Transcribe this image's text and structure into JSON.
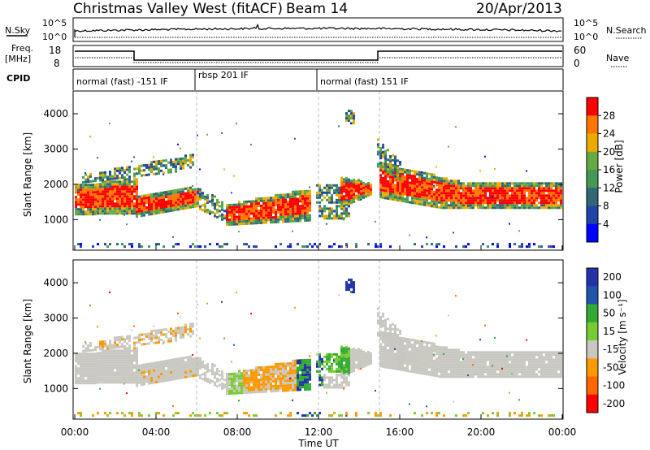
{
  "header": {
    "title": "Christmas Valley West (fitACF)",
    "beam": "Beam 14",
    "date": "20/Apr/2013"
  },
  "panels": {
    "nsky_label": "N.Sky",
    "nsky_ticks": [
      "10^5",
      "10^0"
    ],
    "nsearch_label": "N.Search",
    "freq_label_1": "Freq.",
    "freq_label_2": "[MHz]",
    "freq_ticks": [
      "18",
      "8"
    ],
    "nave_label": "Nave",
    "nave_ticks": [
      "60",
      "0"
    ],
    "cpid_label": "CPID",
    "cpid_segments": [
      {
        "label": "normal (fast) -151 IF",
        "start_hour": 0,
        "end_hour": 6
      },
      {
        "label": "rbsp 201 IF",
        "start_hour": 6,
        "end_hour": 12
      },
      {
        "label": "normal (fast) 151 IF",
        "start_hour": 12,
        "end_hour": 24
      }
    ]
  },
  "chart_data": [
    {
      "type": "heatmap",
      "name": "power",
      "ylabel": "Slant Range [km]",
      "xlabel": "Time UT",
      "x_ticks": [
        "00:00",
        "04:00",
        "08:00",
        "12:00",
        "16:00",
        "20:00",
        "00:00"
      ],
      "x_range_hours": [
        0,
        24
      ],
      "y_ticks": [
        1000,
        2000,
        3000,
        4000
      ],
      "y_range_km": [
        180,
        4600
      ],
      "colorbar": {
        "label": "Power [dB]",
        "ticks": [
          4,
          8,
          12,
          16,
          20,
          24,
          28
        ],
        "range": [
          0,
          32
        ],
        "colors": [
          "#0000ff",
          "#2244aa",
          "#336677",
          "#449955",
          "#66aa44",
          "#eeaa00",
          "#ff7700",
          "#ff0000"
        ]
      }
    },
    {
      "type": "heatmap",
      "name": "velocity",
      "ylabel": "Slant Range [km]",
      "xlabel": "Time UT",
      "x_ticks": [
        "00:00",
        "04:00",
        "08:00",
        "12:00",
        "16:00",
        "20:00",
        "00:00"
      ],
      "x_range_hours": [
        0,
        24
      ],
      "y_ticks": [
        1000,
        2000,
        3000,
        4000
      ],
      "y_range_km": [
        180,
        4600
      ],
      "colorbar": {
        "label": "Velocity [m s⁻¹]",
        "ticks": [
          200,
          100,
          50,
          15,
          -15,
          -50,
          -100,
          -200
        ],
        "colors": [
          "#2233aa",
          "#2255aa",
          "#33aa33",
          "#77cc33",
          "#c8c8c0",
          "#ff9900",
          "#ff6600",
          "#ff0000"
        ]
      }
    }
  ],
  "footer": {
    "xlabel": "Time UT"
  }
}
